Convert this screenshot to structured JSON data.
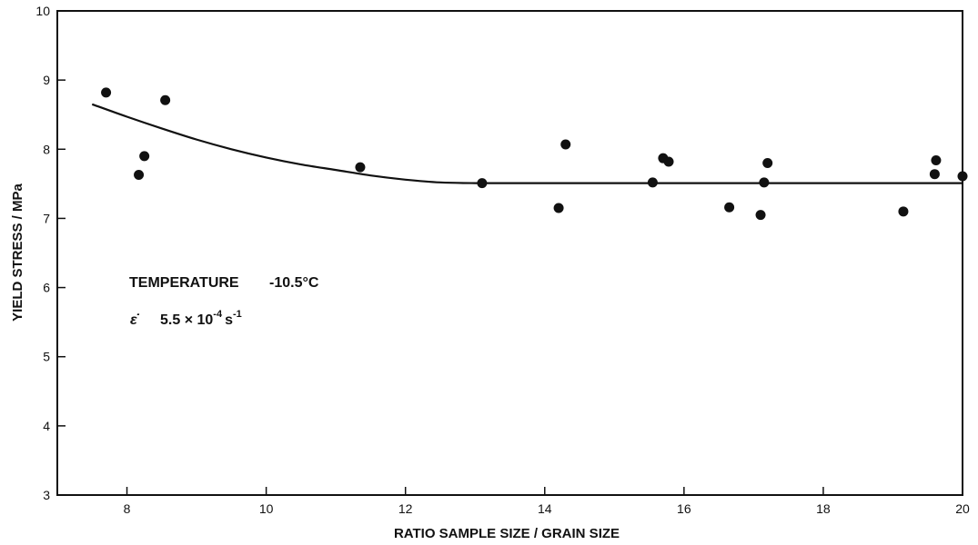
{
  "chart_data": {
    "type": "scatter",
    "title": "",
    "xlabel": "RATIO SAMPLE SIZE / GRAIN SIZE",
    "ylabel": "YIELD STRESS / MPa",
    "xlim": [
      7,
      20
    ],
    "ylim": [
      3,
      10
    ],
    "xticks": [
      8,
      10,
      12,
      14,
      16,
      18,
      20
    ],
    "yticks": [
      3,
      4,
      5,
      6,
      7,
      8,
      9,
      10
    ],
    "grid": false,
    "points": [
      {
        "x": 7.7,
        "y": 8.82
      },
      {
        "x": 8.17,
        "y": 7.63
      },
      {
        "x": 8.25,
        "y": 7.9
      },
      {
        "x": 8.55,
        "y": 8.71
      },
      {
        "x": 11.35,
        "y": 7.74
      },
      {
        "x": 13.1,
        "y": 7.51
      },
      {
        "x": 14.2,
        "y": 7.15
      },
      {
        "x": 14.3,
        "y": 8.07
      },
      {
        "x": 15.55,
        "y": 7.52
      },
      {
        "x": 15.7,
        "y": 7.87
      },
      {
        "x": 15.78,
        "y": 7.82
      },
      {
        "x": 16.65,
        "y": 7.16
      },
      {
        "x": 17.1,
        "y": 7.05
      },
      {
        "x": 17.15,
        "y": 7.52
      },
      {
        "x": 17.2,
        "y": 7.8
      },
      {
        "x": 19.15,
        "y": 7.1
      },
      {
        "x": 19.6,
        "y": 7.64
      },
      {
        "x": 19.62,
        "y": 7.84
      },
      {
        "x": 20.0,
        "y": 7.61
      }
    ],
    "fit_curve": [
      {
        "x": 7.5,
        "y": 8.65
      },
      {
        "x": 8.0,
        "y": 8.47
      },
      {
        "x": 8.5,
        "y": 8.3
      },
      {
        "x": 9.0,
        "y": 8.14
      },
      {
        "x": 9.5,
        "y": 8.0
      },
      {
        "x": 10.0,
        "y": 7.88
      },
      {
        "x": 10.5,
        "y": 7.78
      },
      {
        "x": 11.0,
        "y": 7.7
      },
      {
        "x": 11.5,
        "y": 7.62
      },
      {
        "x": 12.0,
        "y": 7.56
      },
      {
        "x": 12.5,
        "y": 7.52
      },
      {
        "x": 13.0,
        "y": 7.51
      },
      {
        "x": 14.0,
        "y": 7.51
      },
      {
        "x": 16.0,
        "y": 7.51
      },
      {
        "x": 18.0,
        "y": 7.51
      },
      {
        "x": 20.0,
        "y": 7.51
      }
    ],
    "annotations": {
      "temperature_label": "TEMPERATURE",
      "temperature_value": "-10.5°C",
      "strain_rate_symbol": "ε̇",
      "strain_rate_mantissa": "5.5 × 10",
      "strain_rate_exp": "-4",
      "strain_rate_unit": "s",
      "strain_rate_unit_exp": "-1"
    }
  },
  "colors": {
    "ink": "#111111",
    "background": "#ffffff"
  }
}
